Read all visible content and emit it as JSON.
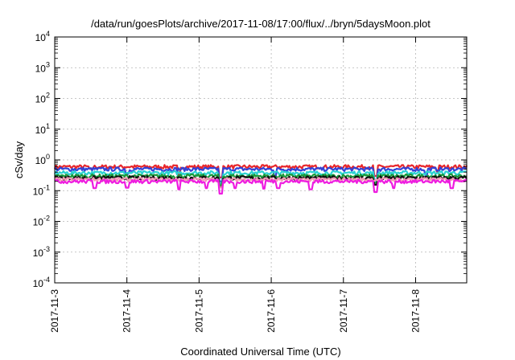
{
  "chart_data": {
    "type": "line",
    "title": "/data/run/goesPlots/archive/2017-11-08/17:00/flux/../bryn/5daysMoon.plot",
    "xlabel": "Coordinated Universal Time (UTC)",
    "ylabel": "cSv/day",
    "x_scale": "time",
    "xlim": [
      "2017-11-03T00:00",
      "2017-11-08T17:00"
    ],
    "x_ticks": [
      "2017-11-3",
      "2017-11-4",
      "2017-11-5",
      "2017-11-6",
      "2017-11-7",
      "2017-11-8"
    ],
    "y_scale": "log",
    "ylim": [
      0.0001,
      10000
    ],
    "y_ticks": [
      {
        "base": "10",
        "exp": "4"
      },
      {
        "base": "10",
        "exp": "3"
      },
      {
        "base": "10",
        "exp": "2"
      },
      {
        "base": "10",
        "exp": "1"
      },
      {
        "base": "10",
        "exp": "0"
      },
      {
        "base": "10",
        "exp": "-1"
      },
      {
        "base": "10",
        "exp": "-2"
      },
      {
        "base": "10",
        "exp": "-3"
      },
      {
        "base": "10",
        "exp": "-4"
      }
    ],
    "grid": true,
    "legend": "none",
    "series": [
      {
        "color": "#e8262b",
        "level": 0.6,
        "dips": [
          [
            0.5,
            0.85
          ],
          [
            1.72,
            0.55
          ],
          [
            2.3,
            0.45
          ],
          [
            4.45,
            0.5
          ],
          [
            5.3,
            0.7
          ]
        ]
      },
      {
        "color": "#3343d6",
        "level": 0.5,
        "dips": [
          [
            1.0,
            0.7
          ],
          [
            2.3,
            0.4
          ],
          [
            3.05,
            0.55
          ],
          [
            4.45,
            0.45
          ],
          [
            5.15,
            0.6
          ]
        ]
      },
      {
        "color": "#2ad2d2",
        "level": 0.38,
        "dips": [
          [
            2.3,
            0.45
          ],
          [
            4.45,
            0.55
          ]
        ]
      },
      {
        "color": "#1a9a3a",
        "level": 0.3,
        "dips": [
          [
            2.3,
            0.5
          ],
          [
            4.45,
            0.6
          ]
        ]
      },
      {
        "color": "#111111",
        "level": 0.26,
        "dips": [
          [
            2.3,
            0.5
          ],
          [
            4.45,
            0.6
          ]
        ]
      },
      {
        "color": "#f39ab6",
        "level": 0.23,
        "dips": [
          [
            2.3,
            0.55
          ]
        ]
      },
      {
        "color": "#ee1ce0",
        "level": 0.2,
        "dips": [
          [
            0.55,
            0.6
          ],
          [
            1.0,
            0.62
          ],
          [
            1.72,
            0.55
          ],
          [
            2.1,
            0.6
          ],
          [
            2.3,
            0.4
          ],
          [
            2.5,
            0.6
          ],
          [
            2.9,
            0.58
          ],
          [
            3.1,
            0.6
          ],
          [
            3.55,
            0.55
          ],
          [
            4.45,
            0.45
          ],
          [
            4.7,
            0.6
          ],
          [
            5.5,
            0.6
          ]
        ]
      }
    ]
  }
}
